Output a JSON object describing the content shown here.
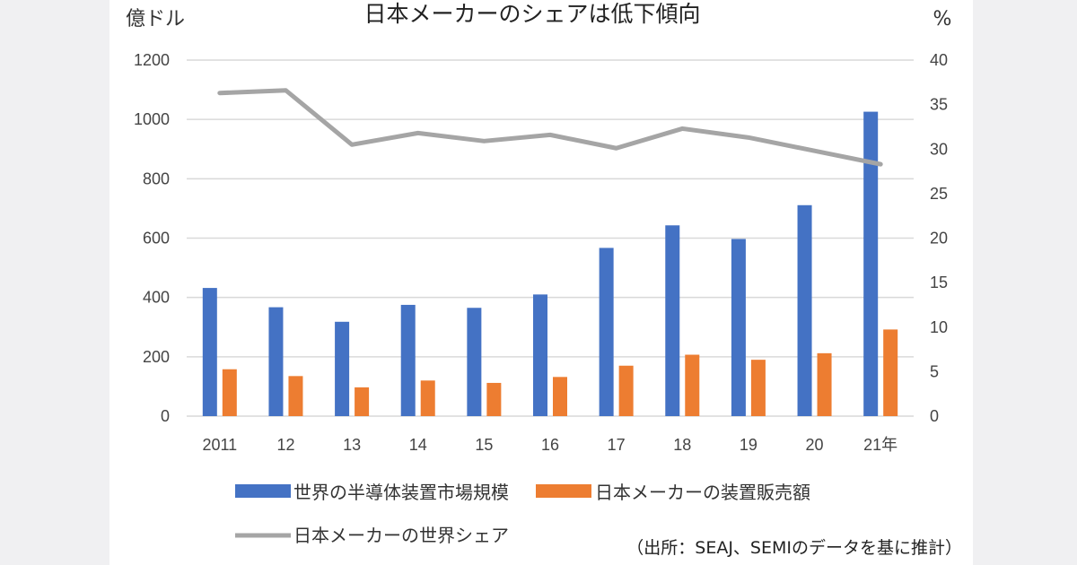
{
  "chart_data": {
    "type": "bar",
    "title": "日本メーカーのシェアは低下傾向",
    "left_axis_unit": "億ドル",
    "right_axis_unit": "%",
    "categories": [
      "2011",
      "12",
      "13",
      "14",
      "15",
      "16",
      "17",
      "18",
      "19",
      "20",
      "21年"
    ],
    "ylim_left": [
      0,
      1200
    ],
    "yticks_left": [
      0,
      200,
      400,
      600,
      800,
      1000,
      1200
    ],
    "ylim_right": [
      0,
      40
    ],
    "yticks_right": [
      0,
      5,
      10,
      15,
      20,
      25,
      30,
      35,
      40
    ],
    "grid": true,
    "series": [
      {
        "name": "世界の半導体装置市場規模",
        "kind": "bar",
        "axis": "left",
        "color": "#4472c4",
        "values": [
          432,
          367,
          318,
          375,
          365,
          410,
          567,
          643,
          597,
          711,
          1026
        ]
      },
      {
        "name": "日本メーカーの装置販売額",
        "kind": "bar",
        "axis": "left",
        "color": "#ed7d31",
        "values": [
          158,
          135,
          97,
          120,
          112,
          132,
          170,
          207,
          190,
          212,
          292
        ]
      },
      {
        "name": "日本メーカーの世界シェア",
        "kind": "line",
        "axis": "right",
        "color": "#a5a5a5",
        "values": [
          36.3,
          36.6,
          30.5,
          31.8,
          30.9,
          31.6,
          30.1,
          32.3,
          31.3,
          29.8,
          28.3
        ]
      }
    ],
    "legend_position": "bottom",
    "source_note": "（出所：SEAJ、SEMIのデータを基に推計）"
  }
}
